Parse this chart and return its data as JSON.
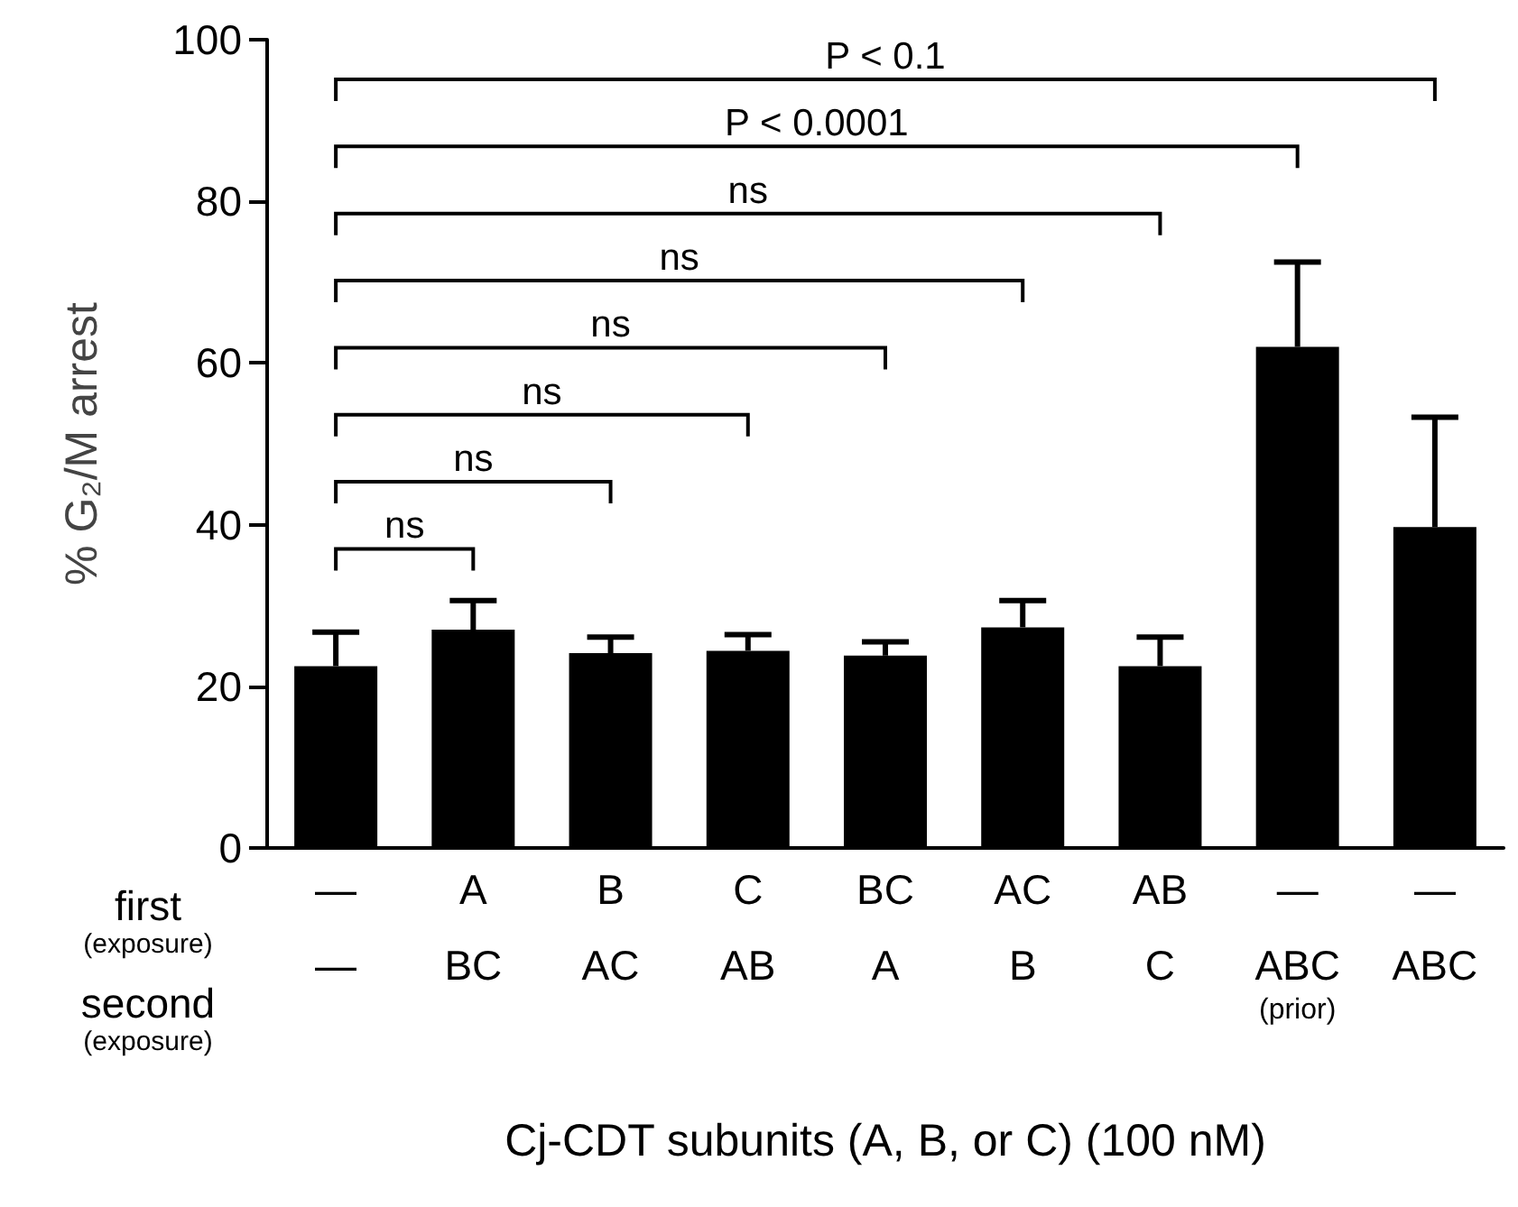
{
  "chart_data": {
    "type": "bar",
    "xlabel": "Cj-CDT subunits (A, B, or C) (100 nM)",
    "ylabel": "% G₂/M arrest",
    "categories": [
      "—\n—",
      "A\nBC",
      "B\nAC",
      "C\nAB",
      "BC\nA",
      "AC\nB",
      "AB\nC",
      "—\nABC\n(prior)",
      "—\nABC"
    ],
    "values": [
      22.5,
      27.0,
      24.1,
      24.4,
      23.8,
      27.3,
      22.5,
      62.0,
      39.7
    ],
    "errors": [
      [
        22.5,
        26.7
      ],
      [
        27.0,
        30.6
      ],
      [
        24.1,
        26.1
      ],
      [
        24.4,
        26.4
      ],
      [
        23.8,
        25.5
      ],
      [
        27.3,
        30.6
      ],
      [
        22.5,
        26.1
      ],
      [
        62.0,
        72.5
      ],
      [
        39.7,
        53.3
      ]
    ],
    "color": "#000000",
    "ylim": [
      0,
      100
    ],
    "yticks": [
      0,
      20,
      40,
      60,
      80,
      100
    ],
    "grid": false,
    "annotations": [
      "ns",
      "ns",
      "ns",
      "ns",
      "ns",
      "ns",
      "P < 0.0001",
      "P < 0.1",
      "first",
      "(exposure)",
      "second",
      "(exposure)"
    ]
  }
}
